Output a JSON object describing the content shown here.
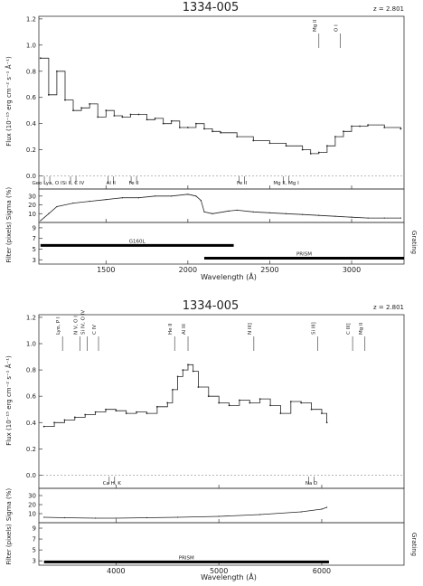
{
  "chart_data": [
    {
      "type": "line",
      "title": "1334-005",
      "redshift": "z = 2.801",
      "xlabel": "Wavelength (Å)",
      "xlim": [
        1090,
        3320
      ],
      "xticks": [
        "1500",
        "2000",
        "2500",
        "3000"
      ],
      "flux": {
        "ylabel": "Flux (10⁻¹⁵ erg cm⁻² s⁻¹ Å⁻¹)",
        "ylim": [
          -0.1,
          1.22
        ],
        "yticks": [
          "0.0",
          "0.2",
          "0.4",
          "0.6",
          "0.8",
          "1.0",
          "1.2"
        ],
        "series": [
          {
            "x": [
              1100,
              1150,
              1200,
              1250,
              1300,
              1350,
              1400,
              1450,
              1500,
              1550,
              1600,
              1650,
              1700,
              1750,
              1800,
              1850,
              1900,
              1950,
              2000,
              2050,
              2100,
              2150,
              2200,
              2300,
              2400,
              2500,
              2600,
              2700,
              2750,
              2800,
              2850,
              2900,
              2950,
              3000,
              3050,
              3100,
              3200,
              3300
            ],
            "y": [
              0.9,
              0.62,
              0.8,
              0.58,
              0.5,
              0.52,
              0.55,
              0.45,
              0.5,
              0.46,
              0.45,
              0.47,
              0.47,
              0.43,
              0.44,
              0.4,
              0.42,
              0.37,
              0.37,
              0.4,
              0.36,
              0.34,
              0.33,
              0.3,
              0.27,
              0.25,
              0.23,
              0.2,
              0.17,
              0.18,
              0.23,
              0.3,
              0.34,
              0.38,
              0.38,
              0.39,
              0.37,
              0.36
            ]
          }
        ],
        "upper_lines": [
          "Mg II",
          "O I"
        ],
        "lower_lines": [
          "Geo Lya, O I",
          "Si II, C IV",
          "Al II",
          "Fe II",
          "Fe II",
          "Mg II, Mg I"
        ]
      },
      "sigma": {
        "ylabel": "Sigma (%)",
        "yticks": [
          "10",
          "20",
          "30"
        ],
        "ylim": [
          0,
          38
        ],
        "series": [
          {
            "x": [
              1100,
              1150,
              1200,
              1300,
              1400,
              1500,
              1600,
              1700,
              1800,
              1900,
              2000,
              2050,
              2080,
              2100,
              2150,
              2250,
              2300,
              2400,
              2500,
              2600,
              2700,
              2800,
              2900,
              3000,
              3100,
              3200,
              3300
            ],
            "y": [
              2,
              10,
              18,
              22,
              24,
              26,
              28,
              28,
              30,
              30,
              32,
              30,
              25,
              12,
              10,
              13,
              14,
              12,
              11,
              10,
              9,
              8,
              7,
              6,
              5,
              5,
              5
            ]
          }
        ]
      },
      "filter": {
        "ylabel": "Filter (pixels)",
        "right_label": "Grating",
        "yticks": [
          "3",
          "5",
          "7",
          "9"
        ],
        "ylim": [
          2.2,
          10
        ],
        "bars": [
          {
            "label": "G160L",
            "from": 1100,
            "to": 2280,
            "level": 5.7
          },
          {
            "label": "PRISM",
            "from": 2100,
            "to": 3320,
            "level": 3.3
          }
        ]
      }
    },
    {
      "type": "line",
      "title": "1334-005",
      "redshift": "z = 2.801",
      "xlabel": "Wavelength (Å)",
      "xlim": [
        3250,
        6800
      ],
      "xticks": [
        "4000",
        "5000",
        "6000"
      ],
      "flux": {
        "ylabel": "Flux (10⁻¹⁵ erg cm⁻² s⁻¹ Å⁻¹)",
        "ylim": [
          -0.1,
          1.22
        ],
        "yticks": [
          "0.0",
          "0.2",
          "0.4",
          "0.6",
          "0.8",
          "1.0",
          "1.2"
        ],
        "series": [
          {
            "x": [
              3300,
              3400,
              3500,
              3600,
              3700,
              3800,
              3900,
              4000,
              4100,
              4200,
              4300,
              4400,
              4500,
              4550,
              4600,
              4650,
              4700,
              4750,
              4800,
              4900,
              5000,
              5100,
              5200,
              5300,
              5400,
              5500,
              5600,
              5700,
              5800,
              5900,
              6000,
              6050
            ],
            "y": [
              0.37,
              0.4,
              0.42,
              0.44,
              0.46,
              0.48,
              0.5,
              0.49,
              0.47,
              0.48,
              0.47,
              0.52,
              0.55,
              0.65,
              0.75,
              0.8,
              0.84,
              0.79,
              0.67,
              0.6,
              0.55,
              0.53,
              0.57,
              0.55,
              0.58,
              0.53,
              0.47,
              0.56,
              0.55,
              0.5,
              0.47,
              0.4
            ]
          }
        ],
        "upper_lines": [
          "Lyα, P I",
          "N V, O I",
          "Si IV, O IV",
          "C IV",
          "He II",
          "Al III",
          "N III]",
          "Si III]",
          "C III]",
          "Mg II"
        ],
        "lower_lines": [
          "Ca H, K",
          "Na D"
        ]
      },
      "sigma": {
        "ylabel": "Sigma (%)",
        "yticks": [
          "10",
          "20",
          "30"
        ],
        "ylim": [
          0,
          38
        ],
        "series": [
          {
            "x": [
              3300,
              3500,
              3800,
              4000,
              4300,
              4600,
              5000,
              5400,
              5800,
              6000,
              6050
            ],
            "y": [
              6,
              5.5,
              5,
              5,
              5.5,
              6,
              7,
              9,
              12,
              15,
              17
            ]
          }
        ]
      },
      "filter": {
        "ylabel": "Filter (pixels)",
        "right_label": "Grating",
        "yticks": [
          "3",
          "5",
          "7",
          "9"
        ],
        "ylim": [
          2.2,
          10
        ],
        "bars": [
          {
            "label": "PRISM",
            "from": 3300,
            "to": 6070,
            "level": 2.8
          }
        ]
      }
    }
  ]
}
